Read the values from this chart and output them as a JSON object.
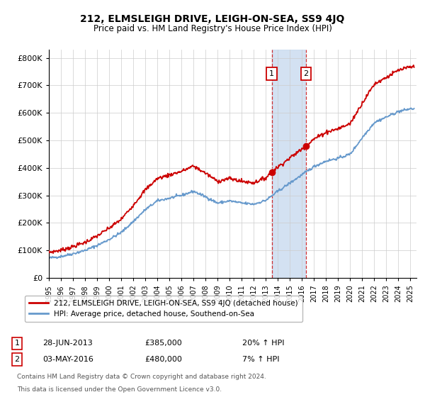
{
  "title": "212, ELMSLEIGH DRIVE, LEIGH-ON-SEA, SS9 4JQ",
  "subtitle": "Price paid vs. HM Land Registry's House Price Index (HPI)",
  "ylabel_ticks": [
    "£0",
    "£100K",
    "£200K",
    "£300K",
    "£400K",
    "£500K",
    "£600K",
    "£700K",
    "£800K"
  ],
  "ytick_vals": [
    0,
    100000,
    200000,
    300000,
    400000,
    500000,
    600000,
    700000,
    800000
  ],
  "ylim": [
    0,
    830000
  ],
  "xlim_start": 1995.0,
  "xlim_end": 2025.5,
  "sale1_date": 2013.49,
  "sale1_price": 385000,
  "sale2_date": 2016.33,
  "sale2_price": 480000,
  "legend_line1": "212, ELMSLEIGH DRIVE, LEIGH-ON-SEA, SS9 4JQ (detached house)",
  "legend_line2": "HPI: Average price, detached house, Southend-on-Sea",
  "ann1_date": "28-JUN-2013",
  "ann1_price": "£385,000",
  "ann1_hpi": "20% ↑ HPI",
  "ann2_date": "03-MAY-2016",
  "ann2_price": "£480,000",
  "ann2_hpi": "7% ↑ HPI",
  "footer1": "Contains HM Land Registry data © Crown copyright and database right 2024.",
  "footer2": "This data is licensed under the Open Government Licence v3.0.",
  "red_color": "#cc0000",
  "blue_color": "#6699cc",
  "shade_color": "#ccdcf0",
  "grid_color": "#cccccc",
  "bg_color": "#ffffff"
}
